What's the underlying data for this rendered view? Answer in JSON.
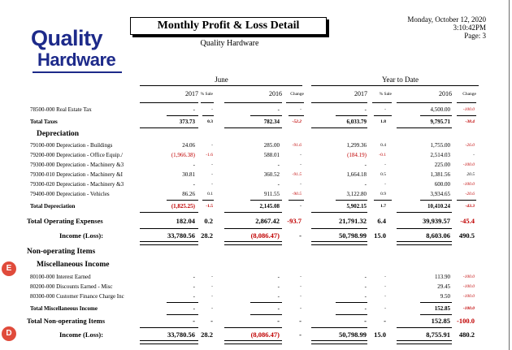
{
  "logo": {
    "line1": "Quality",
    "line2": "Hardware"
  },
  "report": {
    "title": "Monthly Profit & Loss Detail",
    "company": "Quality Hardware",
    "date": "Monday, October 12, 2020",
    "time": "3:10:42PM",
    "page": "Page:  3"
  },
  "columns": {
    "period_june": "June",
    "period_ytd": "Year to Date",
    "y2017": "2017",
    "y2016": "2016",
    "pct_sale": "% Sale",
    "change": "Change"
  },
  "rows": [
    {
      "label": "78500-000 Real Estate Tax",
      "j17": "-",
      "j17p": "-",
      "j16": "-",
      "j16c": "-",
      "y17": "-",
      "y17p": "-",
      "y16": "4,500.00",
      "y16c": "-100.0"
    },
    {
      "label": "Total Taxes",
      "j17": "373.73",
      "j17p": "0.3",
      "j16": "782.34",
      "j16c": "-52.2",
      "y17": "6,033.79",
      "y17p": "1.8",
      "y16": "9,795.71",
      "y16c": "-38.4"
    },
    {
      "label": "Depreciation"
    },
    {
      "label": "79100-000 Depreciation - Buildings",
      "j17": "24.06",
      "j17p": "-",
      "j16": "285.00",
      "j16c": "-91.6",
      "y17": "1,299.36",
      "y17p": "0.4",
      "y16": "1,755.00",
      "y16c": "-26.0"
    },
    {
      "label": "79200-000 Depreciation - Office Equip./",
      "j17": "(1,966.38)",
      "j17p": "-1.6",
      "j16": "588.01",
      "j16c": "-",
      "y17": "(184.19)",
      "y17p": "-0.1",
      "y16": "2,514.03",
      "y16c": "-"
    },
    {
      "label": "79300-000 Depreciation - Machinery &3",
      "j17": "-",
      "j17p": "-",
      "j16": "-",
      "j16c": "-",
      "y17": "-",
      "y17p": "-",
      "y16": "225.00",
      "y16c": "-100.0"
    },
    {
      "label": "79300-010 Depreciation - Machinery &I",
      "j17": "30.81",
      "j17p": "-",
      "j16": "360.52",
      "j16c": "-91.5",
      "y17": "1,664.18",
      "y17p": "0.5",
      "y16": "1,381.56",
      "y16c": "20.5"
    },
    {
      "label": "79300-020 Depreciation - Machinery &3",
      "j17": "-",
      "j17p": "-",
      "j16": "-",
      "j16c": "-",
      "y17": "-",
      "y17p": "-",
      "y16": "600.00",
      "y16c": "-100.0"
    },
    {
      "label": "79400-000 Depreciation - Vehicles",
      "j17": "86.26",
      "j17p": "0.1",
      "j16": "911.55",
      "j16c": "-90.5",
      "y17": "3,122.80",
      "y17p": "0.9",
      "y16": "3,934.65",
      "y16c": "-20.6"
    },
    {
      "label": "Total Depreciation",
      "j17": "(1,825.25)",
      "j17p": "-1.5",
      "j16": "2,145.08",
      "j16c": "-",
      "y17": "5,902.15",
      "y17p": "1.7",
      "y16": "10,410.24",
      "y16c": "-43.3"
    },
    {
      "label": "Total Operating Expenses",
      "j17": "182.04",
      "j17p": "0.2",
      "j16": "2,867.42",
      "j16c": "-93.7",
      "y17": "21,791.32",
      "y17p": "6.4",
      "y16": "39,939.57",
      "y16c": "-45.4"
    },
    {
      "label": "Income (Loss):",
      "j17": "33,780.56",
      "j17p": "28.2",
      "j16": "(8,086.47)",
      "j16c": "-",
      "y17": "50,798.99",
      "y17p": "15.0",
      "y16": "8,603.06",
      "y16c": "490.5"
    },
    {
      "label": "Non-operating Items"
    },
    {
      "label": "Miscellaneous Income"
    },
    {
      "label": "80100-000 Interest Earned",
      "j17": "-",
      "j17p": "-",
      "j16": "-",
      "j16c": "-",
      "y17": "-",
      "y17p": "-",
      "y16": "113.90",
      "y16c": "-100.0"
    },
    {
      "label": "80200-000 Discounts Earned - Misc",
      "j17": "-",
      "j17p": "-",
      "j16": "-",
      "j16c": "-",
      "y17": "-",
      "y17p": "-",
      "y16": "29.45",
      "y16c": "-100.0"
    },
    {
      "label": "80300-000 Customer Finance Charge Inc",
      "j17": "-",
      "j17p": "-",
      "j16": "-",
      "j16c": "-",
      "y17": "-",
      "y17p": "-",
      "y16": "9.50",
      "y16c": "-100.0"
    },
    {
      "label": "Total Miscellaneous Income",
      "j17": "-",
      "j17p": "-",
      "j16": "-",
      "j16c": "-",
      "y17": "-",
      "y17p": "-",
      "y16": "152.85",
      "y16c": "-100.0"
    },
    {
      "label": "Total Non-operating Items",
      "j17": "-",
      "j17p": "-",
      "j16": "-",
      "j16c": "-",
      "y17": "-",
      "y17p": "-",
      "y16": "152.85",
      "y16c": "-100.0"
    },
    {
      "label": "Income (Loss):",
      "j17": "33,780.56",
      "j17p": "28.2",
      "j16": "(8,086.47)",
      "j16c": "-",
      "y17": "50,798.99",
      "y17p": "15.0",
      "y16": "8,755.91",
      "y16c": "480.2"
    }
  ],
  "badges": {
    "e": "E",
    "d": "D"
  },
  "colors": {
    "logo": "#1d2a8a",
    "negative": "#c00000",
    "badge": "#e04b3b"
  }
}
